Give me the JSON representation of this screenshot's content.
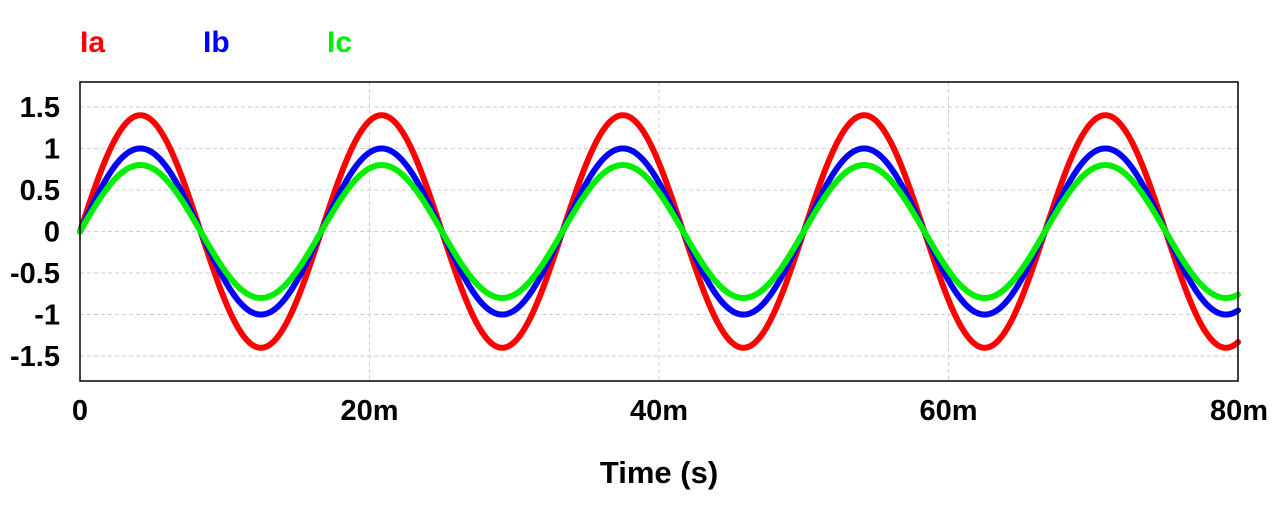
{
  "chart_data": {
    "type": "line",
    "title": "",
    "xlabel": "Time (s)",
    "ylabel": "",
    "xlim": [
      0,
      0.08
    ],
    "ylim": [
      -1.8,
      1.8
    ],
    "x_ticks": [
      {
        "value": 0,
        "label": "0"
      },
      {
        "value": 0.02,
        "label": "20m"
      },
      {
        "value": 0.04,
        "label": "40m"
      },
      {
        "value": 0.06,
        "label": "60m"
      },
      {
        "value": 0.08,
        "label": "80m"
      }
    ],
    "y_ticks": [
      {
        "value": 1.5,
        "label": "1.5"
      },
      {
        "value": 1,
        "label": "1"
      },
      {
        "value": 0.5,
        "label": "0.5"
      },
      {
        "value": 0,
        "label": "0"
      },
      {
        "value": -0.5,
        "label": "-0.5"
      },
      {
        "value": -1,
        "label": "-1"
      },
      {
        "value": -1.5,
        "label": "-1.5"
      }
    ],
    "grid": true,
    "legend_position": "top-left",
    "frequency_hz": 60,
    "series": [
      {
        "name": "Ia",
        "color": "#ff0000",
        "amplitude": 1.4,
        "phase_deg": 0
      },
      {
        "name": "Ib",
        "color": "#0000ff",
        "amplitude": 1.0,
        "phase_deg": 0
      },
      {
        "name": "Ic",
        "color": "#00ee00",
        "amplitude": 0.8,
        "phase_deg": 0
      }
    ]
  }
}
